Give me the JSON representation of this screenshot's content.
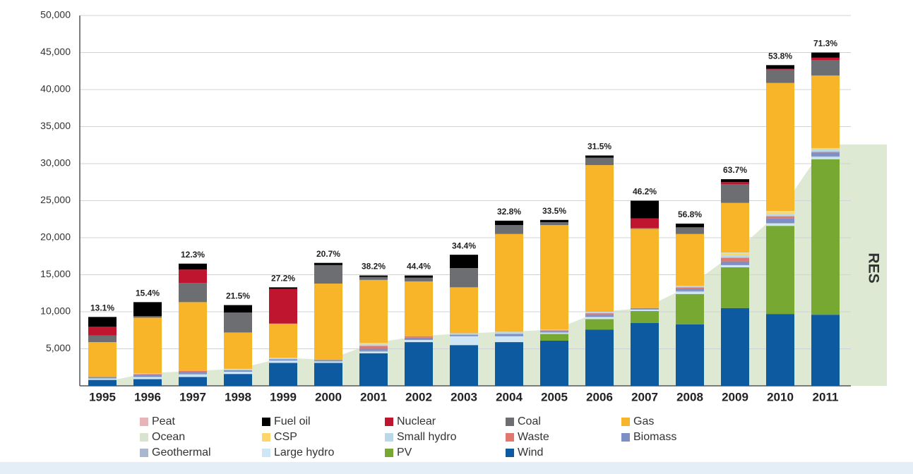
{
  "chart_data": {
    "type": "stacked_bar",
    "categories": [
      "1995",
      "1996",
      "1997",
      "1998",
      "1999",
      "2000",
      "2001",
      "2002",
      "2003",
      "2004",
      "2005",
      "2006",
      "2007",
      "2008",
      "2009",
      "2010",
      "2011"
    ],
    "ylim": [
      0,
      50000
    ],
    "yticks": [
      {
        "value": 5000,
        "label": "5,000"
      },
      {
        "value": 10000,
        "label": "10,000"
      },
      {
        "value": 15000,
        "label": "15,000"
      },
      {
        "value": 20000,
        "label": "20,000"
      },
      {
        "value": 25000,
        "label": "25,000"
      },
      {
        "value": 30000,
        "label": "30,000"
      },
      {
        "value": 35000,
        "label": "35,000"
      },
      {
        "value": 40000,
        "label": "40,000"
      },
      {
        "value": 45000,
        "label": "45,000"
      },
      {
        "value": 50000,
        "label": "50,000"
      }
    ],
    "grid": true,
    "series": [
      {
        "name": "Peat",
        "color": "#e8b4b8",
        "values": [
          0,
          0,
          0,
          0,
          0,
          0,
          0,
          0,
          0,
          0,
          0,
          0,
          0,
          0,
          0,
          0,
          0
        ]
      },
      {
        "name": "Fuel oil",
        "color": "#000000",
        "values": [
          1300,
          1900,
          800,
          1000,
          200,
          300,
          200,
          300,
          1800,
          600,
          300,
          300,
          2400,
          500,
          400,
          500,
          700
        ]
      },
      {
        "name": "Nuclear",
        "color": "#c0152f",
        "values": [
          1200,
          0,
          1800,
          0,
          4700,
          0,
          0,
          0,
          0,
          0,
          0,
          0,
          1300,
          0,
          300,
          100,
          300
        ]
      },
      {
        "name": "Coal",
        "color": "#6d6e71",
        "values": [
          900,
          200,
          2600,
          2700,
          0,
          2500,
          400,
          500,
          2600,
          1200,
          400,
          1000,
          100,
          900,
          2500,
          1800,
          2100
        ]
      },
      {
        "name": "Gas",
        "color": "#f9b52a",
        "values": [
          4700,
          7500,
          9300,
          4900,
          4600,
          10300,
          8500,
          7400,
          6200,
          13200,
          14100,
          19800,
          10700,
          7000,
          6700,
          17300,
          9800
        ]
      },
      {
        "name": "Ocean",
        "color": "#d9e4cf",
        "values": [
          0,
          0,
          0,
          0,
          0,
          0,
          0,
          0,
          0,
          0,
          0,
          0,
          0,
          0,
          100,
          100,
          0
        ]
      },
      {
        "name": "CSP",
        "color": "#fdd66a",
        "values": [
          0,
          0,
          0,
          0,
          0,
          0,
          200,
          0,
          0,
          0,
          0,
          0,
          0,
          0,
          300,
          300,
          200
        ]
      },
      {
        "name": "Small hydro",
        "color": "#b9d9ea",
        "values": [
          0,
          100,
          0,
          200,
          200,
          0,
          200,
          0,
          200,
          300,
          100,
          200,
          0,
          200,
          300,
          300,
          300
        ]
      },
      {
        "name": "Waste",
        "color": "#e0786f",
        "values": [
          0,
          100,
          100,
          0,
          0,
          0,
          400,
          200,
          0,
          0,
          100,
          200,
          0,
          200,
          500,
          300,
          100
        ]
      },
      {
        "name": "Biomass",
        "color": "#7d8fc4",
        "values": [
          200,
          300,
          300,
          200,
          200,
          200,
          300,
          300,
          200,
          300,
          200,
          300,
          200,
          300,
          500,
          600,
          500
        ]
      },
      {
        "name": "Geothermal",
        "color": "#a9b8d0",
        "values": [
          0,
          0,
          100,
          0,
          0,
          0,
          100,
          0,
          0,
          0,
          0,
          0,
          0,
          100,
          0,
          100,
          100
        ]
      },
      {
        "name": "Large hydro",
        "color": "#cfe6f5",
        "values": [
          200,
          300,
          300,
          300,
          300,
          200,
          200,
          300,
          1200,
          800,
          200,
          300,
          200,
          300,
          300,
          300,
          300
        ]
      },
      {
        "name": "PV",
        "color": "#76a832",
        "values": [
          0,
          0,
          0,
          0,
          0,
          0,
          0,
          0,
          0,
          0,
          900,
          1400,
          1600,
          4100,
          5500,
          11900,
          21000
        ]
      },
      {
        "name": "Wind",
        "color": "#0d5aa0",
        "values": [
          800,
          900,
          1200,
          1600,
          3100,
          3100,
          4400,
          5900,
          5500,
          5900,
          6100,
          7600,
          8500,
          8300,
          10500,
          9700,
          9600
        ]
      }
    ],
    "res_share": {
      "values": [
        13.1,
        15.4,
        12.3,
        21.5,
        27.2,
        20.7,
        38.2,
        44.4,
        34.4,
        32.8,
        33.5,
        31.5,
        46.2,
        56.8,
        63.7,
        53.8,
        71.3
      ],
      "value_labels": [
        "13.1%",
        "15.4%",
        "12.3%",
        "21.5%",
        "27.2%",
        "20.7%",
        "38.2%",
        "44.4%",
        "34.4%",
        "32.8%",
        "33.5%",
        "31.5%",
        "46.2%",
        "56.8%",
        "63.7%",
        "53.8%",
        "71.3%"
      ]
    },
    "res_area": {
      "label": "RES",
      "color": "#dde9d3",
      "values": [
        500,
        1700,
        2000,
        2300,
        3800,
        3500,
        5800,
        6700,
        7100,
        7300,
        7600,
        10000,
        10500,
        13500,
        18000,
        23600,
        32600
      ]
    }
  }
}
